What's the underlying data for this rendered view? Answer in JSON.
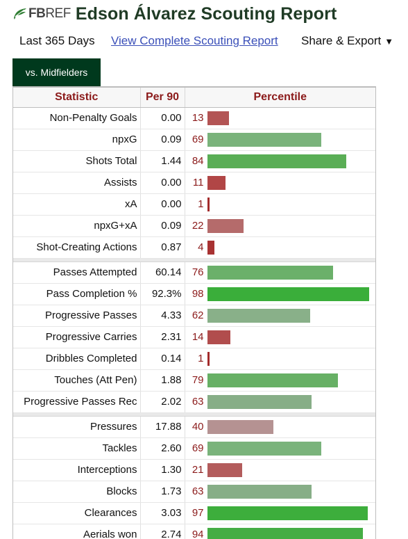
{
  "header": {
    "logo_fb": "FB",
    "logo_ref": "REF",
    "logo_icon": "fbref-leaf-icon",
    "title": "Edson Álvarez Scouting Report"
  },
  "subnav": {
    "period": "Last 365 Days",
    "full_report_link": "View Complete Scouting Report",
    "share_label": "Share & Export",
    "share_caret": "▼"
  },
  "tabs": [
    {
      "label": "vs. Midfielders",
      "active": true
    }
  ],
  "table": {
    "headers": {
      "statistic": "Statistic",
      "per90": "Per 90",
      "percentile": "Percentile"
    },
    "groups": [
      [
        {
          "stat": "Non-Penalty Goals",
          "per90": "0.00",
          "percentile": 13,
          "color": "#b35454"
        },
        {
          "stat": "npxG",
          "per90": "0.09",
          "percentile": 69,
          "color": "#7ab37b"
        },
        {
          "stat": "Shots Total",
          "per90": "1.44",
          "percentile": 84,
          "color": "#5aae56"
        },
        {
          "stat": "Assists",
          "per90": "0.00",
          "percentile": 11,
          "color": "#b14646"
        },
        {
          "stat": "xA",
          "per90": "0.00",
          "percentile": 1,
          "color": "#a32b2b"
        },
        {
          "stat": "npxG+xA",
          "per90": "0.09",
          "percentile": 22,
          "color": "#b56b6b"
        },
        {
          "stat": "Shot-Creating Actions",
          "per90": "0.87",
          "percentile": 4,
          "color": "#a83232"
        }
      ],
      [
        {
          "stat": "Passes Attempted",
          "per90": "60.14",
          "percentile": 76,
          "color": "#6bb06a"
        },
        {
          "stat": "Pass Completion %",
          "per90": "92.3%",
          "percentile": 98,
          "color": "#3aae3a"
        },
        {
          "stat": "Progressive Passes",
          "per90": "4.33",
          "percentile": 62,
          "color": "#89b089"
        },
        {
          "stat": "Progressive Carries",
          "per90": "2.31",
          "percentile": 14,
          "color": "#b14d4d"
        },
        {
          "stat": "Dribbles Completed",
          "per90": "0.14",
          "percentile": 1,
          "color": "#a32b2b"
        },
        {
          "stat": "Touches (Att Pen)",
          "per90": "1.88",
          "percentile": 79,
          "color": "#67b065"
        },
        {
          "stat": "Progressive Passes Rec",
          "per90": "2.02",
          "percentile": 63,
          "color": "#87ae87"
        }
      ],
      [
        {
          "stat": "Pressures",
          "per90": "17.88",
          "percentile": 40,
          "color": "#b59292"
        },
        {
          "stat": "Tackles",
          "per90": "2.60",
          "percentile": 69,
          "color": "#7ab37b"
        },
        {
          "stat": "Interceptions",
          "per90": "1.30",
          "percentile": 21,
          "color": "#b35c5c"
        },
        {
          "stat": "Blocks",
          "per90": "1.73",
          "percentile": 63,
          "color": "#87ae87"
        },
        {
          "stat": "Clearances",
          "per90": "3.03",
          "percentile": 97,
          "color": "#3dae3c"
        },
        {
          "stat": "Aerials won",
          "per90": "2.74",
          "percentile": 94,
          "color": "#45ad44"
        }
      ]
    ]
  }
}
